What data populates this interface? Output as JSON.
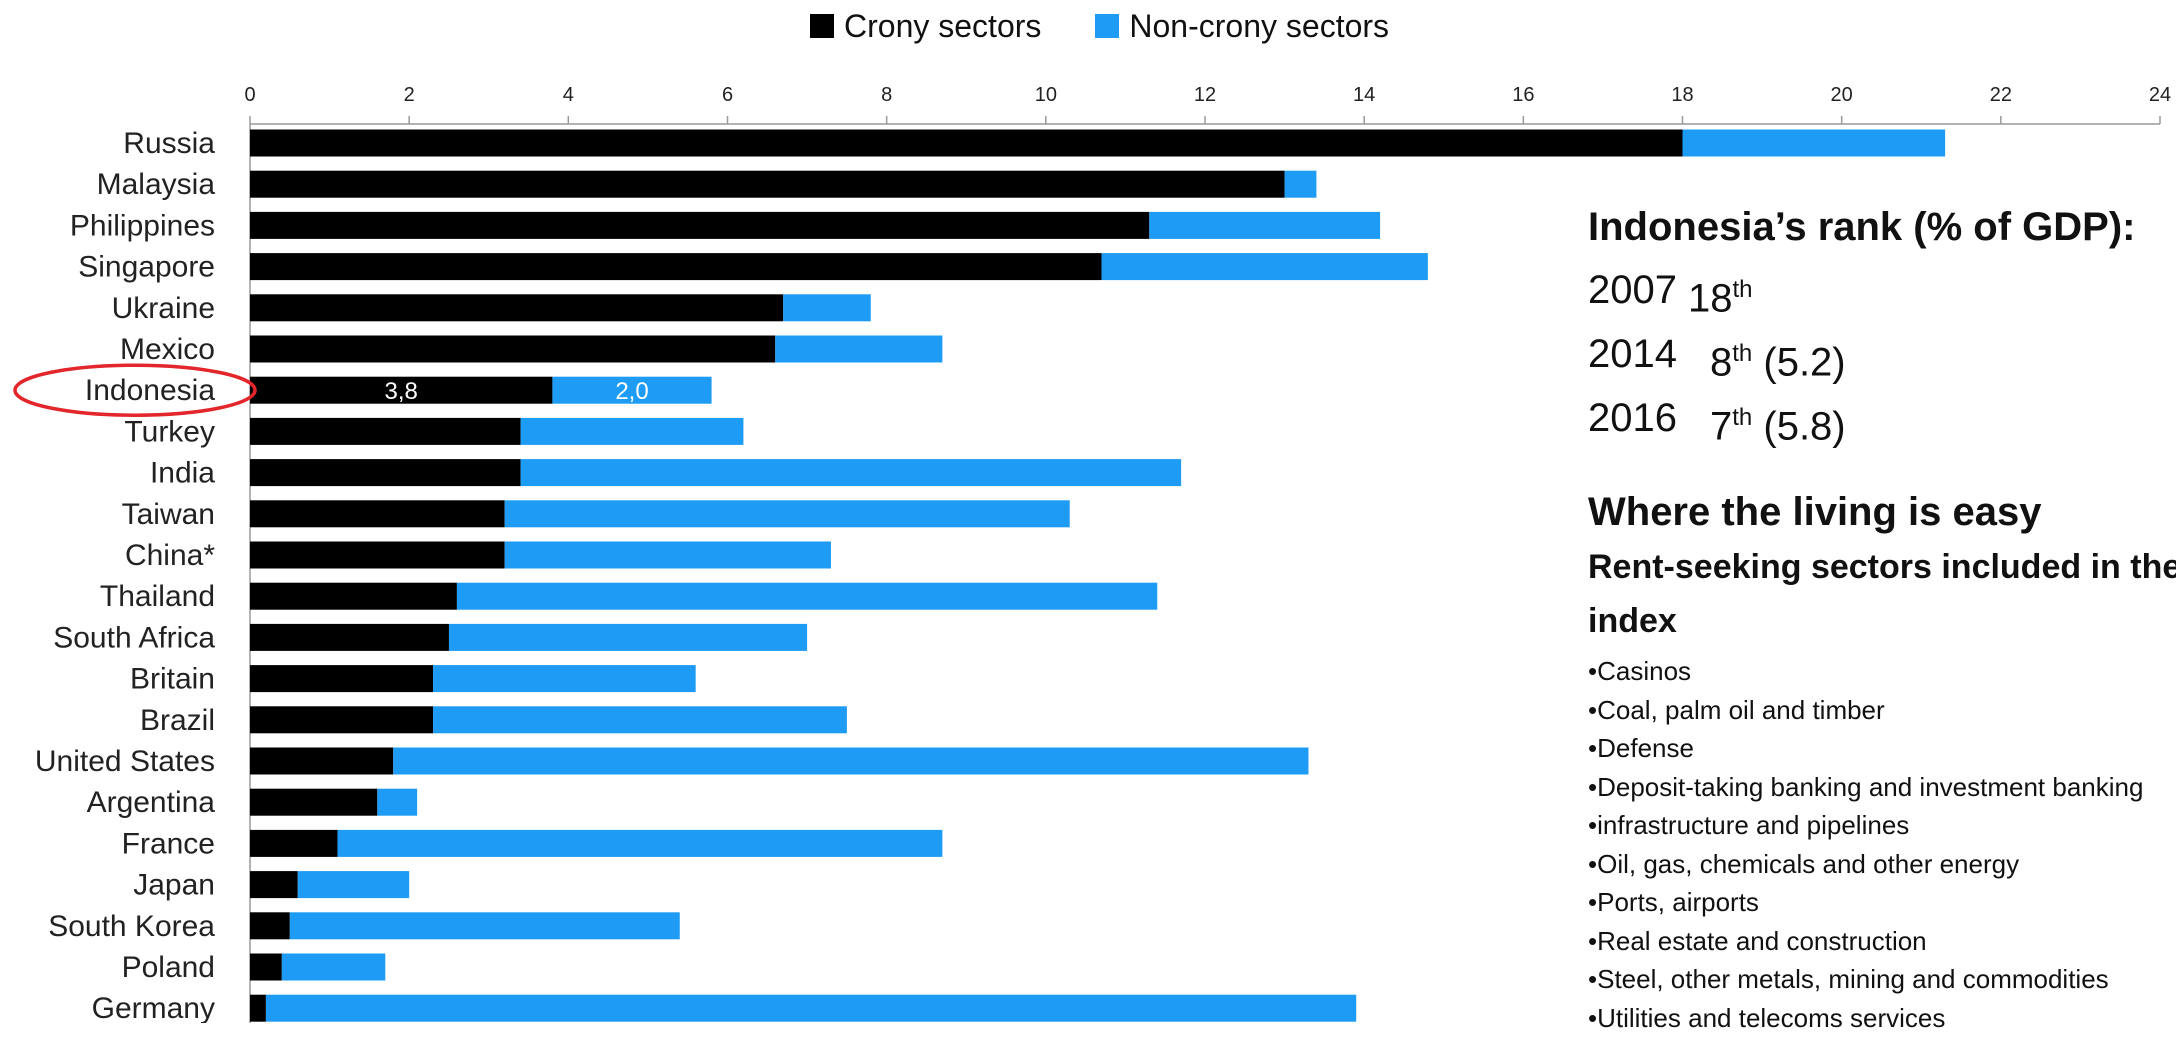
{
  "chart_data": {
    "type": "bar",
    "orientation": "horizontal",
    "stacked": true,
    "xlim": [
      0,
      24
    ],
    "xticks": [
      "0",
      "2",
      "4",
      "6",
      "8",
      "10",
      "12",
      "14",
      "16",
      "18",
      "20",
      "22",
      "24"
    ],
    "legend_position": "top",
    "categories": [
      "Russia",
      "Malaysia",
      "Philippines",
      "Singapore",
      "Ukraine",
      "Mexico",
      "Indonesia",
      "Turkey",
      "India",
      "Taiwan",
      "China*",
      "Thailand",
      "South Africa",
      "Britain",
      "Brazil",
      "United States",
      "Argentina",
      "France",
      "Japan",
      "South Korea",
      "Poland",
      "Germany"
    ],
    "series": [
      {
        "name": "Crony sectors",
        "color": "#000000",
        "values": [
          18.0,
          13.0,
          11.3,
          10.7,
          6.7,
          6.6,
          3.8,
          3.4,
          3.4,
          3.2,
          3.2,
          2.6,
          2.5,
          2.3,
          2.3,
          1.8,
          1.6,
          1.1,
          0.6,
          0.5,
          0.4,
          0.2
        ]
      },
      {
        "name": "Non-crony sectors",
        "color": "#1E9BF5",
        "values": [
          3.3,
          0.4,
          2.9,
          4.1,
          1.1,
          2.1,
          2.0,
          2.8,
          8.3,
          7.1,
          4.1,
          8.8,
          4.5,
          3.3,
          5.2,
          11.5,
          0.5,
          7.6,
          1.4,
          4.9,
          1.3,
          13.7
        ]
      }
    ],
    "data_labels": {
      "Indonesia": [
        "3,8",
        "2,0"
      ]
    },
    "highlight_category": "Indonesia",
    "highlight_color": "#E3262B"
  },
  "rank": {
    "title": "Indonesia’s rank (% of GDP):",
    "rows": [
      {
        "year": "2007",
        "rank": "18",
        "sup": "th",
        "extra": ""
      },
      {
        "year": "2014",
        "rank": "8",
        "sup": "th",
        "extra": " (5.2)"
      },
      {
        "year": "2016",
        "rank": "7",
        "sup": "th",
        "extra": " (5.8)"
      }
    ]
  },
  "easy": {
    "title": "Where the living is easy",
    "subtitle": "Rent-seeking sectors included in the index",
    "items": [
      "•Casinos",
      "•Coal, palm oil and timber",
      "•Defense",
      "•Deposit-taking banking and investment banking",
      "•infrastructure and pipelines",
      "•Oil, gas, chemicals and other energy",
      "•Ports, airports",
      "•Real estate and construction",
      "•Steel, other metals, mining and commodities",
      "•Utilities and telecoms services"
    ]
  }
}
